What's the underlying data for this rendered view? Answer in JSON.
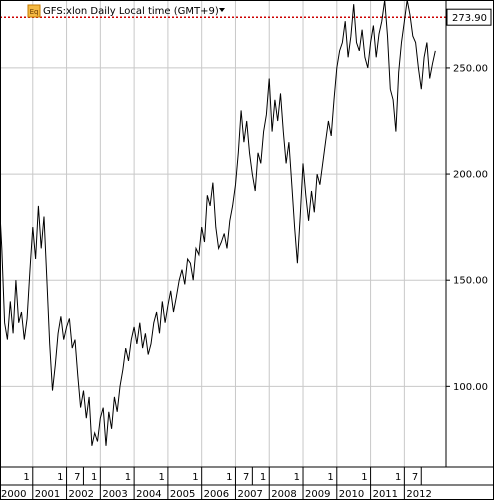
{
  "chart_data": {
    "type": "line",
    "title": "GFS:xlon Daily Local time (GMT+9)",
    "title_icon_text": "Eq",
    "xlabel": "",
    "ylabel": "",
    "x_range": [
      "2000-01",
      "2012-12"
    ],
    "ylim": [
      62,
      282
    ],
    "y_ticks": [
      {
        "value": 100,
        "label": "100.00"
      },
      {
        "value": 150,
        "label": "150.00"
      },
      {
        "value": 200,
        "label": "200.00"
      },
      {
        "value": 250,
        "label": "250.00"
      }
    ],
    "year_ticks": [
      {
        "date": "2000-01",
        "label": "2000"
      },
      {
        "date": "2001-01",
        "label": "2001"
      },
      {
        "date": "2002-01",
        "label": "2002"
      },
      {
        "date": "2003-01",
        "label": "2003"
      },
      {
        "date": "2004-01",
        "label": "2004"
      },
      {
        "date": "2005-01",
        "label": "2005"
      },
      {
        "date": "2006-01",
        "label": "2006"
      },
      {
        "date": "2007-01",
        "label": "2007"
      },
      {
        "date": "2008-01",
        "label": "2008"
      },
      {
        "date": "2009-01",
        "label": "2009"
      },
      {
        "date": "2010-01",
        "label": "2010"
      },
      {
        "date": "2011-01",
        "label": "2011"
      },
      {
        "date": "2012-01",
        "label": "2012"
      }
    ],
    "month_ticks": [
      {
        "date": "2000-01",
        "label": "1"
      },
      {
        "date": "2001-01",
        "label": "1"
      },
      {
        "date": "2002-01",
        "label": "1"
      },
      {
        "date": "2002-07",
        "label": "7"
      },
      {
        "date": "2003-01",
        "label": "1"
      },
      {
        "date": "2004-01",
        "label": "1"
      },
      {
        "date": "2005-01",
        "label": "1"
      },
      {
        "date": "2006-01",
        "label": "1"
      },
      {
        "date": "2007-01",
        "label": "1"
      },
      {
        "date": "2007-07",
        "label": "7"
      },
      {
        "date": "2008-01",
        "label": "1"
      },
      {
        "date": "2009-01",
        "label": "1"
      },
      {
        "date": "2010-01",
        "label": "1"
      },
      {
        "date": "2011-01",
        "label": "1"
      },
      {
        "date": "2012-01",
        "label": "1"
      },
      {
        "date": "2012-07",
        "label": "7"
      }
    ],
    "current_level": {
      "value": 273.9,
      "label": "273.90",
      "color": "#cc0000"
    },
    "grid": true,
    "series": [
      {
        "color": "#000000",
        "points": [
          [
            "2000-01",
            190
          ],
          [
            "2000-02",
            165
          ],
          [
            "2000-03",
            130
          ],
          [
            "2000-04",
            122
          ],
          [
            "2000-05",
            140
          ],
          [
            "2000-06",
            125
          ],
          [
            "2000-07",
            150
          ],
          [
            "2000-08",
            130
          ],
          [
            "2000-09",
            135
          ],
          [
            "2000-10",
            122
          ],
          [
            "2000-11",
            132
          ],
          [
            "2000-12",
            155
          ],
          [
            "2001-01",
            175
          ],
          [
            "2001-02",
            160
          ],
          [
            "2001-03",
            185
          ],
          [
            "2001-04",
            165
          ],
          [
            "2001-05",
            180
          ],
          [
            "2001-06",
            150
          ],
          [
            "2001-07",
            120
          ],
          [
            "2001-08",
            98
          ],
          [
            "2001-09",
            110
          ],
          [
            "2001-10",
            125
          ],
          [
            "2001-11",
            133
          ],
          [
            "2001-12",
            122
          ],
          [
            "2002-01",
            128
          ],
          [
            "2002-02",
            132
          ],
          [
            "2002-03",
            118
          ],
          [
            "2002-04",
            122
          ],
          [
            "2002-05",
            105
          ],
          [
            "2002-06",
            90
          ],
          [
            "2002-07",
            98
          ],
          [
            "2002-08",
            85
          ],
          [
            "2002-09",
            95
          ],
          [
            "2002-10",
            72
          ],
          [
            "2002-11",
            78
          ],
          [
            "2002-12",
            74
          ],
          [
            "2003-01",
            85
          ],
          [
            "2003-02",
            90
          ],
          [
            "2003-03",
            72
          ],
          [
            "2003-04",
            88
          ],
          [
            "2003-05",
            80
          ],
          [
            "2003-06",
            95
          ],
          [
            "2003-07",
            88
          ],
          [
            "2003-08",
            100
          ],
          [
            "2003-09",
            108
          ],
          [
            "2003-10",
            118
          ],
          [
            "2003-11",
            112
          ],
          [
            "2003-12",
            122
          ],
          [
            "2004-01",
            128
          ],
          [
            "2004-02",
            120
          ],
          [
            "2004-03",
            130
          ],
          [
            "2004-04",
            118
          ],
          [
            "2004-05",
            125
          ],
          [
            "2004-06",
            115
          ],
          [
            "2004-07",
            120
          ],
          [
            "2004-08",
            130
          ],
          [
            "2004-09",
            135
          ],
          [
            "2004-10",
            125
          ],
          [
            "2004-11",
            140
          ],
          [
            "2004-12",
            130
          ],
          [
            "2005-01",
            138
          ],
          [
            "2005-02",
            145
          ],
          [
            "2005-03",
            135
          ],
          [
            "2005-04",
            142
          ],
          [
            "2005-05",
            150
          ],
          [
            "2005-06",
            155
          ],
          [
            "2005-07",
            148
          ],
          [
            "2005-08",
            160
          ],
          [
            "2005-09",
            158
          ],
          [
            "2005-10",
            150
          ],
          [
            "2005-11",
            165
          ],
          [
            "2005-12",
            162
          ],
          [
            "2006-01",
            175
          ],
          [
            "2006-02",
            168
          ],
          [
            "2006-03",
            190
          ],
          [
            "2006-04",
            185
          ],
          [
            "2006-05",
            196
          ],
          [
            "2006-06",
            175
          ],
          [
            "2006-07",
            165
          ],
          [
            "2006-08",
            168
          ],
          [
            "2006-09",
            172
          ],
          [
            "2006-10",
            165
          ],
          [
            "2006-11",
            178
          ],
          [
            "2006-12",
            185
          ],
          [
            "2007-01",
            195
          ],
          [
            "2007-02",
            210
          ],
          [
            "2007-03",
            230
          ],
          [
            "2007-04",
            215
          ],
          [
            "2007-05",
            225
          ],
          [
            "2007-06",
            210
          ],
          [
            "2007-07",
            200
          ],
          [
            "2007-08",
            192
          ],
          [
            "2007-09",
            210
          ],
          [
            "2007-10",
            205
          ],
          [
            "2007-11",
            220
          ],
          [
            "2007-12",
            228
          ],
          [
            "2008-01",
            245
          ],
          [
            "2008-02",
            220
          ],
          [
            "2008-03",
            235
          ],
          [
            "2008-04",
            225
          ],
          [
            "2008-05",
            238
          ],
          [
            "2008-06",
            220
          ],
          [
            "2008-07",
            205
          ],
          [
            "2008-08",
            215
          ],
          [
            "2008-09",
            195
          ],
          [
            "2008-10",
            175
          ],
          [
            "2008-11",
            158
          ],
          [
            "2008-12",
            180
          ],
          [
            "2009-01",
            205
          ],
          [
            "2009-02",
            190
          ],
          [
            "2009-03",
            178
          ],
          [
            "2009-04",
            192
          ],
          [
            "2009-05",
            182
          ],
          [
            "2009-06",
            200
          ],
          [
            "2009-07",
            195
          ],
          [
            "2009-08",
            205
          ],
          [
            "2009-09",
            215
          ],
          [
            "2009-10",
            225
          ],
          [
            "2009-11",
            218
          ],
          [
            "2009-12",
            235
          ],
          [
            "2010-01",
            250
          ],
          [
            "2010-02",
            258
          ],
          [
            "2010-03",
            262
          ],
          [
            "2010-04",
            272
          ],
          [
            "2010-05",
            255
          ],
          [
            "2010-06",
            265
          ],
          [
            "2010-07",
            280
          ],
          [
            "2010-08",
            262
          ],
          [
            "2010-09",
            258
          ],
          [
            "2010-10",
            268
          ],
          [
            "2010-11",
            255
          ],
          [
            "2010-12",
            250
          ],
          [
            "2011-01",
            262
          ],
          [
            "2011-02",
            270
          ],
          [
            "2011-03",
            255
          ],
          [
            "2011-04",
            266
          ],
          [
            "2011-05",
            272
          ],
          [
            "2011-06",
            282
          ],
          [
            "2011-07",
            265
          ],
          [
            "2011-08",
            240
          ],
          [
            "2011-09",
            235
          ],
          [
            "2011-10",
            220
          ],
          [
            "2011-11",
            248
          ],
          [
            "2011-12",
            262
          ],
          [
            "2012-01",
            272
          ],
          [
            "2012-02",
            282
          ],
          [
            "2012-03",
            275
          ],
          [
            "2012-04",
            265
          ],
          [
            "2012-05",
            262
          ],
          [
            "2012-06",
            250
          ],
          [
            "2012-07",
            240
          ],
          [
            "2012-08",
            255
          ],
          [
            "2012-09",
            262
          ],
          [
            "2012-10",
            245
          ],
          [
            "2012-11",
            252
          ],
          [
            "2012-12",
            258
          ]
        ]
      }
    ]
  }
}
